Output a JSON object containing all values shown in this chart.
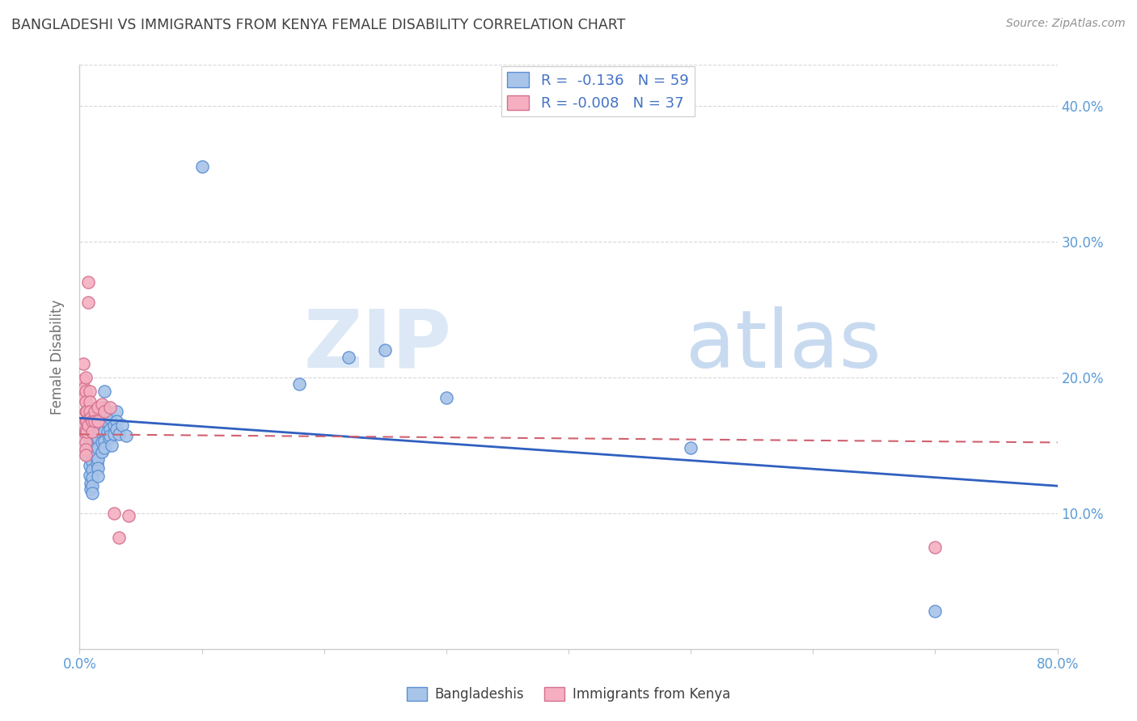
{
  "title": "BANGLADESHI VS IMMIGRANTS FROM KENYA FEMALE DISABILITY CORRELATION CHART",
  "source": "Source: ZipAtlas.com",
  "ylabel": "Female Disability",
  "watermark_zip": "ZIP",
  "watermark_atlas": "atlas",
  "xlim": [
    0.0,
    0.8
  ],
  "ylim": [
    0.0,
    0.43
  ],
  "xticks": [
    0.0,
    0.1,
    0.2,
    0.3,
    0.4,
    0.5,
    0.6,
    0.7,
    0.8
  ],
  "yticks": [
    0.0,
    0.1,
    0.2,
    0.3,
    0.4
  ],
  "blue_R": "-0.136",
  "blue_N": "59",
  "pink_R": "-0.008",
  "pink_N": "37",
  "blue_color": "#a8c4e8",
  "pink_color": "#f5afc0",
  "blue_edge_color": "#5b8fd4",
  "pink_edge_color": "#d47090",
  "blue_line_color": "#3060c0",
  "pink_line_color": "#d06070",
  "title_color": "#404040",
  "axis_color": "#5b9bd5",
  "legend_text_color": "#4472c4",
  "blue_line_x": [
    0.0,
    0.8
  ],
  "blue_line_y": [
    0.17,
    0.12
  ],
  "pink_line_x": [
    0.0,
    0.8
  ],
  "pink_line_y": [
    0.158,
    0.152
  ],
  "blue_scatter": [
    [
      0.005,
      0.16
    ],
    [
      0.007,
      0.15
    ],
    [
      0.007,
      0.142
    ],
    [
      0.008,
      0.135
    ],
    [
      0.008,
      0.128
    ],
    [
      0.009,
      0.122
    ],
    [
      0.009,
      0.118
    ],
    [
      0.01,
      0.155
    ],
    [
      0.01,
      0.148
    ],
    [
      0.01,
      0.143
    ],
    [
      0.01,
      0.138
    ],
    [
      0.01,
      0.132
    ],
    [
      0.01,
      0.126
    ],
    [
      0.01,
      0.12
    ],
    [
      0.01,
      0.115
    ],
    [
      0.012,
      0.17
    ],
    [
      0.012,
      0.158
    ],
    [
      0.013,
      0.148
    ],
    [
      0.013,
      0.142
    ],
    [
      0.014,
      0.136
    ],
    [
      0.015,
      0.165
    ],
    [
      0.015,
      0.155
    ],
    [
      0.015,
      0.148
    ],
    [
      0.015,
      0.14
    ],
    [
      0.015,
      0.133
    ],
    [
      0.015,
      0.127
    ],
    [
      0.016,
      0.17
    ],
    [
      0.017,
      0.16
    ],
    [
      0.018,
      0.152
    ],
    [
      0.018,
      0.145
    ],
    [
      0.02,
      0.19
    ],
    [
      0.02,
      0.178
    ],
    [
      0.02,
      0.168
    ],
    [
      0.02,
      0.16
    ],
    [
      0.02,
      0.153
    ],
    [
      0.02,
      0.148
    ],
    [
      0.022,
      0.175
    ],
    [
      0.022,
      0.167
    ],
    [
      0.023,
      0.16
    ],
    [
      0.024,
      0.155
    ],
    [
      0.025,
      0.17
    ],
    [
      0.025,
      0.162
    ],
    [
      0.025,
      0.157
    ],
    [
      0.026,
      0.15
    ],
    [
      0.028,
      0.165
    ],
    [
      0.028,
      0.158
    ],
    [
      0.03,
      0.175
    ],
    [
      0.03,
      0.168
    ],
    [
      0.03,
      0.162
    ],
    [
      0.032,
      0.158
    ],
    [
      0.035,
      0.165
    ],
    [
      0.038,
      0.157
    ],
    [
      0.1,
      0.355
    ],
    [
      0.18,
      0.195
    ],
    [
      0.22,
      0.215
    ],
    [
      0.25,
      0.22
    ],
    [
      0.3,
      0.185
    ],
    [
      0.5,
      0.148
    ],
    [
      0.7,
      0.028
    ]
  ],
  "pink_scatter": [
    [
      0.003,
      0.21
    ],
    [
      0.003,
      0.198
    ],
    [
      0.004,
      0.192
    ],
    [
      0.004,
      0.185
    ],
    [
      0.005,
      0.2
    ],
    [
      0.005,
      0.19
    ],
    [
      0.005,
      0.182
    ],
    [
      0.005,
      0.175
    ],
    [
      0.005,
      0.168
    ],
    [
      0.005,
      0.162
    ],
    [
      0.005,
      0.158
    ],
    [
      0.005,
      0.152
    ],
    [
      0.005,
      0.147
    ],
    [
      0.005,
      0.143
    ],
    [
      0.006,
      0.175
    ],
    [
      0.006,
      0.168
    ],
    [
      0.006,
      0.16
    ],
    [
      0.007,
      0.27
    ],
    [
      0.007,
      0.255
    ],
    [
      0.007,
      0.165
    ],
    [
      0.008,
      0.19
    ],
    [
      0.008,
      0.182
    ],
    [
      0.008,
      0.175
    ],
    [
      0.009,
      0.17
    ],
    [
      0.01,
      0.168
    ],
    [
      0.01,
      0.16
    ],
    [
      0.012,
      0.175
    ],
    [
      0.012,
      0.168
    ],
    [
      0.015,
      0.178
    ],
    [
      0.015,
      0.168
    ],
    [
      0.018,
      0.18
    ],
    [
      0.02,
      0.175
    ],
    [
      0.025,
      0.178
    ],
    [
      0.028,
      0.1
    ],
    [
      0.032,
      0.082
    ],
    [
      0.04,
      0.098
    ],
    [
      0.7,
      0.075
    ]
  ]
}
